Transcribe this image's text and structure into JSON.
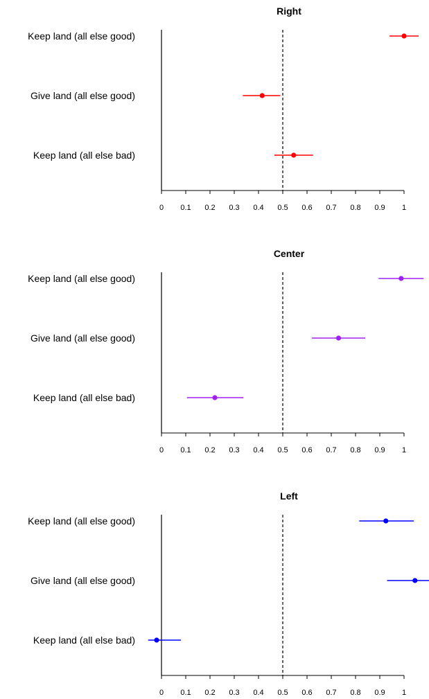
{
  "chart_data": [
    {
      "type": "scatter",
      "title": "Right",
      "color": "#ff0000",
      "xlim": [
        0,
        1
      ],
      "reference_line": 0.5,
      "categories": [
        "Keep land (all else good)",
        "Give land (all else good)",
        "Keep land (all else bad)"
      ],
      "points": [
        {
          "label": "Keep land (all else good)",
          "estimate": 1.0,
          "lower": 0.94,
          "upper": 1.06
        },
        {
          "label": "Give land (all else good)",
          "estimate": 0.415,
          "lower": 0.335,
          "upper": 0.49
        },
        {
          "label": "Keep land (all else bad)",
          "estimate": 0.545,
          "lower": 0.465,
          "upper": 0.625
        }
      ],
      "x_ticks": [
        "0",
        "0.1",
        "0.2",
        "0.3",
        "0.4",
        "0.5",
        "0.6",
        "0.7",
        "0.8",
        "0.9",
        "1"
      ]
    },
    {
      "type": "scatter",
      "title": "Center",
      "color": "#a020f0",
      "xlim": [
        0,
        1
      ],
      "reference_line": 0.5,
      "categories": [
        "Keep land (all else good)",
        "Give land (all else good)",
        "Keep land (all else bad)"
      ],
      "points": [
        {
          "label": "Keep land (all else good)",
          "estimate": 0.988,
          "lower": 0.895,
          "upper": 1.08
        },
        {
          "label": "Give land (all else good)",
          "estimate": 0.73,
          "lower": 0.62,
          "upper": 0.84
        },
        {
          "label": "Keep land (all else bad)",
          "estimate": 0.22,
          "lower": 0.105,
          "upper": 0.338
        }
      ],
      "x_ticks": [
        "0",
        "0.1",
        "0.2",
        "0.3",
        "0.4",
        "0.5",
        "0.6",
        "0.7",
        "0.8",
        "0.9",
        "1"
      ]
    },
    {
      "type": "scatter",
      "title": "Left",
      "color": "#0000ff",
      "xlim": [
        0,
        1
      ],
      "reference_line": 0.5,
      "categories": [
        "Keep land (all else good)",
        "Give land (all else good)",
        "Keep land (all else bad)"
      ],
      "points": [
        {
          "label": "Keep land (all else good)",
          "estimate": 0.925,
          "lower": 0.815,
          "upper": 1.04
        },
        {
          "label": "Give land (all else good)",
          "estimate": 1.045,
          "lower": 0.93,
          "upper": 1.12
        },
        {
          "label": "Keep land (all else bad)",
          "estimate": -0.02,
          "lower": -0.055,
          "upper": 0.08
        }
      ],
      "x_ticks": [
        "0",
        "0.1",
        "0.2",
        "0.3",
        "0.4",
        "0.5",
        "0.6",
        "0.7",
        "0.8",
        "0.9",
        "1"
      ]
    }
  ]
}
